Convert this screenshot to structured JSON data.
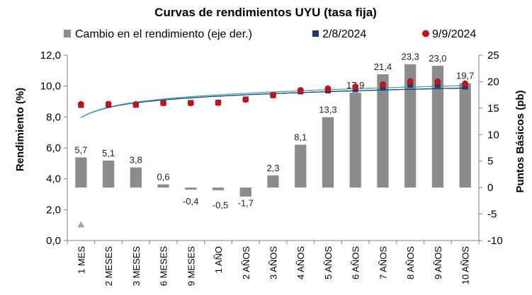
{
  "chart_data": {
    "type": "bar",
    "title": "Curvas de rendimientos UYU (tasa fija)",
    "ylabel_left": "Rendimiento (%)",
    "ylabel_right": "Puntos Básicos (pb)",
    "ylim_left": [
      0,
      12
    ],
    "yticks_left": [
      "0,0",
      "2,0",
      "4,0",
      "6,0",
      "8,0",
      "10,0",
      "12,0"
    ],
    "ylim_right": [
      -10,
      25
    ],
    "yticks_right": [
      "-10",
      "-5",
      "0",
      "5",
      "10",
      "15",
      "20",
      "25"
    ],
    "categories": [
      "1 MES",
      "2 MESES",
      "3 MESES",
      "6 MESES",
      "9 MESES",
      "1 AÑO",
      "2 AÑOS",
      "3 AÑOS",
      "4 AÑOS",
      "5 AÑOS",
      "6 AÑOS",
      "7 AÑOS",
      "8 AÑOS",
      "9 AÑOS",
      "10 AÑOS"
    ],
    "legend": {
      "bar": "Cambio en el rendimiento (eje der.)",
      "series1": "2/8/2024",
      "series2": "9/9/2024"
    },
    "bar_series": {
      "name": "Cambio en el rendimiento (eje der.)",
      "axis": "right",
      "values": [
        5.7,
        5.1,
        3.8,
        0.6,
        -0.4,
        -0.5,
        -1.7,
        2.3,
        8.1,
        13.3,
        17.9,
        21.4,
        23.3,
        23.0,
        19.7
      ],
      "labels": [
        "5,7",
        "5,1",
        "3,8",
        "0,6",
        "-0,4",
        "-0,5",
        "-1,7",
        "2,3",
        "8,1",
        "13,3",
        "17,9",
        "21,4",
        "23,3",
        "23,0",
        "19,7"
      ]
    },
    "series": [
      {
        "name": "2/8/2024",
        "axis": "left",
        "values": [
          8.77,
          8.79,
          8.78,
          8.9,
          8.91,
          8.93,
          9.14,
          9.4,
          9.65,
          9.71,
          9.78,
          9.9,
          10.08,
          10.06,
          9.96
        ]
      },
      {
        "name": "9/9/2024",
        "axis": "left",
        "values": [
          8.83,
          8.84,
          8.82,
          8.91,
          8.9,
          8.92,
          9.12,
          9.42,
          9.73,
          9.84,
          9.96,
          10.11,
          10.31,
          10.29,
          10.16
        ]
      }
    ],
    "outlier_marker": {
      "category": "1 MES",
      "value": -7
    },
    "grid": false,
    "legend_position": "top"
  },
  "colors": {
    "bar": "#8c8c8c",
    "series1": "#1f3a6e",
    "series2": "#c0141b",
    "trend1": "#1f3a6e",
    "trend2": "#3aa6b9",
    "outlier": "#a6a6a6",
    "axis": "#7f7f7f"
  }
}
